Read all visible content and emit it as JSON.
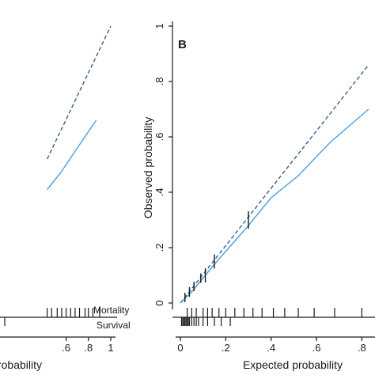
{
  "chart_data": [
    {
      "type": "line",
      "panel_label": "",
      "xlabel": "probability",
      "ylabel": "",
      "xlim": [
        0,
        1
      ],
      "ylim": [
        0,
        1
      ],
      "x_ticks": [
        ".6",
        ".8",
        "1"
      ],
      "x_tick_values": [
        0.6,
        0.8,
        1.0
      ],
      "series": [
        {
          "style": "dashed",
          "points": [
            [
              0.43,
              0.52
            ],
            [
              1.0,
              1.0
            ]
          ]
        },
        {
          "style": "solid",
          "points": [
            [
              0.43,
              0.41
            ],
            [
              0.55,
              0.47
            ],
            [
              0.7,
              0.56
            ],
            [
              0.87,
              0.66
            ]
          ]
        }
      ],
      "rug_labels": [
        "Mortality",
        "Survival"
      ],
      "rug_mortality_x": [
        0.43,
        0.47,
        0.52,
        0.56,
        0.6,
        0.64,
        0.68,
        0.72,
        0.77,
        0.8,
        0.84,
        0.9
      ],
      "colors": {
        "solid": "#4a9fdc",
        "dashed": "#3a5f8a"
      }
    },
    {
      "type": "line",
      "panel_label": "B",
      "xlabel": "Expected probability",
      "ylabel": "Observed probability",
      "xlim": [
        0,
        0.9
      ],
      "ylim": [
        0,
        1
      ],
      "x_ticks": [
        "0",
        ".2",
        ".4",
        ".6",
        ".8"
      ],
      "x_tick_values": [
        0,
        0.2,
        0.4,
        0.6,
        0.8
      ],
      "y_ticks": [
        "0",
        ".2",
        ".4",
        ".6",
        ".8",
        "1"
      ],
      "y_tick_values": [
        0,
        0.2,
        0.4,
        0.6,
        0.8,
        1.0
      ],
      "series": [
        {
          "style": "dashed",
          "points": [
            [
              0,
              0
            ],
            [
              0.83,
              0.86
            ]
          ]
        },
        {
          "style": "solid",
          "points": [
            [
              0,
              0
            ],
            [
              0.05,
              0.04
            ],
            [
              0.15,
              0.14
            ],
            [
              0.3,
              0.28
            ],
            [
              0.4,
              0.38
            ],
            [
              0.52,
              0.46
            ],
            [
              0.66,
              0.58
            ],
            [
              0.83,
              0.7
            ]
          ]
        }
      ],
      "bin_markers": [
        {
          "x": 0.02,
          "y": 0.02
        },
        {
          "x": 0.04,
          "y": 0.04
        },
        {
          "x": 0.06,
          "y": 0.06
        },
        {
          "x": 0.09,
          "y": 0.09
        },
        {
          "x": 0.11,
          "y": 0.1
        },
        {
          "x": 0.15,
          "y": 0.15
        },
        {
          "x": 0.3,
          "y": 0.3
        }
      ],
      "rug_mortality_x": [
        0.03,
        0.05,
        0.07,
        0.1,
        0.12,
        0.14,
        0.17,
        0.2,
        0.24,
        0.28,
        0.32,
        0.36,
        0.41,
        0.46,
        0.52,
        0.59,
        0.68,
        0.8
      ],
      "rug_survival_x": [
        0.005,
        0.01,
        0.015,
        0.02,
        0.025,
        0.03,
        0.035,
        0.04,
        0.05,
        0.06,
        0.07,
        0.08,
        0.1,
        0.12,
        0.15,
        0.18,
        0.22
      ],
      "colors": {
        "solid": "#4a9fdc",
        "dashed": "#3a5f8a"
      }
    }
  ]
}
